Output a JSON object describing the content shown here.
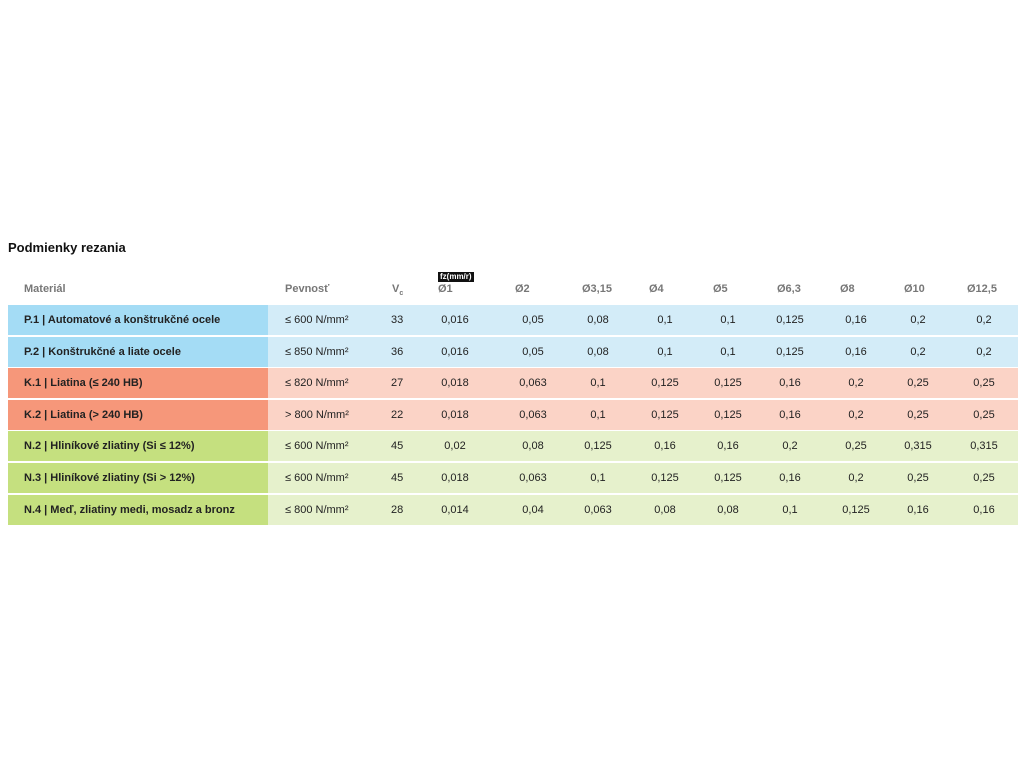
{
  "title": "Podmienky rezania",
  "headers": {
    "material": "Materiál",
    "strength": "Pevnosť",
    "vc": "V",
    "vc_sub": "c",
    "fz": "fz(mm/r)",
    "diameters": [
      "Ø1",
      "Ø2",
      "Ø3,15",
      "Ø4",
      "Ø5",
      "Ø6,3",
      "Ø8",
      "Ø10",
      "Ø12,5"
    ]
  },
  "colors": {
    "P": {
      "dark": "#a4dcf5",
      "light": "#d3ecf8"
    },
    "K": {
      "dark": "#f6977a",
      "light": "#fbd3c6"
    },
    "N": {
      "dark": "#c5e07f",
      "light": "#e6f1cc"
    }
  },
  "rows": [
    {
      "group": "P",
      "material": "P.1 | Automatové a konštrukčné ocele",
      "strength": "≤ 600 N/mm²",
      "vc": "33",
      "fz": [
        "0,016",
        "0,05",
        "0,08",
        "0,1",
        "0,1",
        "0,125",
        "0,16",
        "0,2",
        "0,2"
      ]
    },
    {
      "group": "P",
      "material": "P.2 | Konštrukčné a liate ocele",
      "strength": "≤ 850 N/mm²",
      "vc": "36",
      "fz": [
        "0,016",
        "0,05",
        "0,08",
        "0,1",
        "0,1",
        "0,125",
        "0,16",
        "0,2",
        "0,2"
      ]
    },
    {
      "group": "K",
      "material": "K.1 | Liatina (≤ 240 HB)",
      "strength": "≤ 820 N/mm²",
      "vc": "27",
      "fz": [
        "0,018",
        "0,063",
        "0,1",
        "0,125",
        "0,125",
        "0,16",
        "0,2",
        "0,25",
        "0,25"
      ]
    },
    {
      "group": "K",
      "material": "K.2 | Liatina (> 240 HB)",
      "strength": "> 800 N/mm²",
      "vc": "22",
      "fz": [
        "0,018",
        "0,063",
        "0,1",
        "0,125",
        "0,125",
        "0,16",
        "0,2",
        "0,25",
        "0,25"
      ]
    },
    {
      "group": "N",
      "material": "N.2 | Hliníkové zliatiny (Si ≤ 12%)",
      "strength": "≤ 600 N/mm²",
      "vc": "45",
      "fz": [
        "0,02",
        "0,08",
        "0,125",
        "0,16",
        "0,16",
        "0,2",
        "0,25",
        "0,315",
        "0,315"
      ]
    },
    {
      "group": "N",
      "material": "N.3 | Hliníkové zliatiny (Si > 12%)",
      "strength": "≤ 600 N/mm²",
      "vc": "45",
      "fz": [
        "0,018",
        "0,063",
        "0,1",
        "0,125",
        "0,125",
        "0,16",
        "0,2",
        "0,25",
        "0,25"
      ]
    },
    {
      "group": "N",
      "material": "N.4 | Meď, zliatiny medi, mosadz a bronz",
      "strength": "≤ 800 N/mm²",
      "vc": "28",
      "fz": [
        "0,014",
        "0,04",
        "0,063",
        "0,08",
        "0,08",
        "0,1",
        "0,125",
        "0,16",
        "0,16"
      ]
    }
  ]
}
